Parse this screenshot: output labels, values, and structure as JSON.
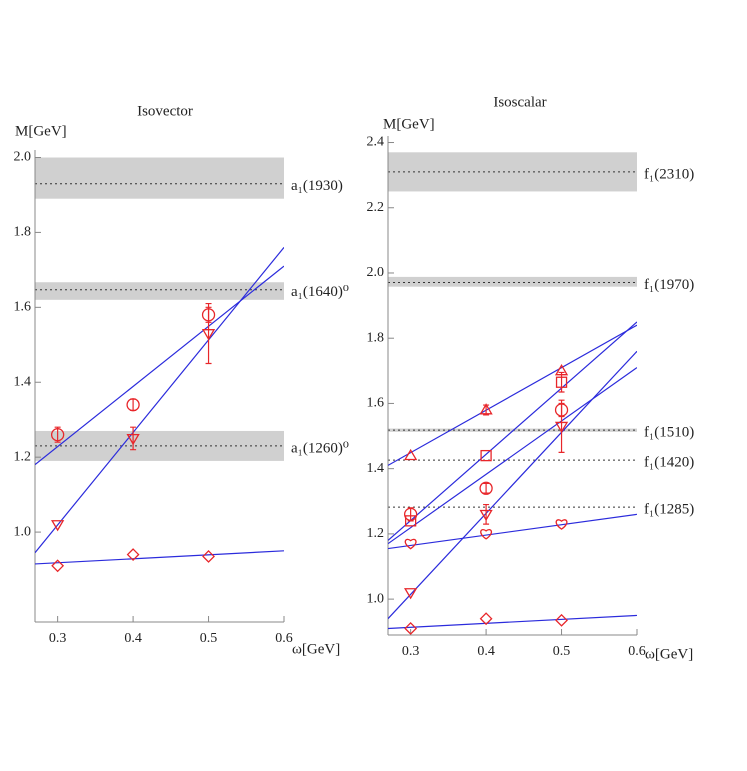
{
  "chart_data": [
    {
      "type": "scatter",
      "title": "Isovector",
      "ylabel": "M[GeV]",
      "xlabel": "ω[GeV]",
      "xlim": [
        0.27,
        0.6
      ],
      "ylim": [
        0.76,
        2.02
      ],
      "xticks": [
        0.3,
        0.4,
        0.5,
        0.6
      ],
      "yticks": [
        {
          "value": 1,
          "label": "1.0"
        },
        1.2,
        1.4,
        1.6,
        1.8,
        {
          "value": 2,
          "label": "2.0"
        }
      ],
      "x": [
        0.3,
        0.4,
        0.5
      ],
      "series": [
        {
          "marker": "circle",
          "color": "#e8262a",
          "values": [
            1.26,
            1.34,
            1.58
          ],
          "errors": [
            0.02,
            0.015,
            0.02
          ]
        },
        {
          "marker": "triangle-down",
          "color": "#e8262a",
          "values": [
            1.02,
            1.25,
            1.53
          ],
          "errors": [
            null,
            0.03,
            0.08
          ]
        },
        {
          "marker": "diamond",
          "color": "#e8262a",
          "values": [
            0.91,
            0.94,
            0.935
          ],
          "errors": [
            null,
            null,
            null
          ]
        }
      ],
      "lines": [
        {
          "color": "#2b2bdc",
          "x": [
            0.27,
            0.6
          ],
          "y": [
            1.18,
            1.71
          ]
        },
        {
          "color": "#2b2bdc",
          "x": [
            0.27,
            0.6
          ],
          "y": [
            0.945,
            1.76
          ]
        },
        {
          "color": "#2b2bdc",
          "x": [
            0.27,
            0.6
          ],
          "y": [
            0.915,
            0.95
          ]
        }
      ],
      "references": [
        {
          "label": "a₁(1930)",
          "value": 1.93,
          "band": [
            1.89,
            2.0
          ]
        },
        {
          "label": "a₁(1640)⁰",
          "value": 1.647,
          "band": [
            1.62,
            1.667
          ]
        },
        {
          "label": "a₁(1260)⁰",
          "value": 1.23,
          "band": [
            1.19,
            1.27
          ]
        }
      ]
    },
    {
      "type": "scatter",
      "title": "Isoscalar",
      "ylabel": "M[GeV]",
      "xlabel": "ω[GeV]",
      "xlim": [
        0.27,
        0.6
      ],
      "ylim": [
        0.89,
        2.42
      ],
      "xticks": [
        0.3,
        0.4,
        0.5,
        0.6
      ],
      "yticks": [
        {
          "value": 1,
          "label": "1.0"
        },
        1.2,
        1.4,
        1.6,
        1.8,
        {
          "value": 2,
          "label": "2.0"
        },
        2.2,
        2.4
      ],
      "x": [
        0.3,
        0.4,
        0.5
      ],
      "series": [
        {
          "marker": "triangle-up",
          "color": "#e8262a",
          "values": [
            1.44,
            1.58,
            1.7
          ],
          "errors": [
            null,
            0.015,
            null
          ]
        },
        {
          "marker": "square",
          "color": "#e8262a",
          "values": [
            1.24,
            1.44,
            1.665
          ],
          "errors": [
            null,
            null,
            0.03
          ]
        },
        {
          "marker": "circle",
          "color": "#e8262a",
          "values": [
            1.26,
            1.34,
            1.58
          ],
          "errors": [
            0.02,
            0.015,
            0.02
          ]
        },
        {
          "marker": "triangle-down",
          "color": "#e8262a",
          "values": [
            1.02,
            1.26,
            1.53
          ],
          "errors": [
            null,
            0.03,
            0.08
          ]
        },
        {
          "marker": "heart",
          "color": "#e8262a",
          "values": [
            1.17,
            1.2,
            1.23
          ],
          "errors": [
            null,
            null,
            null
          ]
        },
        {
          "marker": "diamond",
          "color": "#e8262a",
          "values": [
            0.91,
            0.94,
            0.935
          ],
          "errors": [
            null,
            null,
            null
          ]
        }
      ],
      "lines": [
        {
          "color": "#2b2bdc",
          "x": [
            0.27,
            0.6
          ],
          "y": [
            1.41,
            1.84
          ]
        },
        {
          "color": "#2b2bdc",
          "x": [
            0.27,
            0.6
          ],
          "y": [
            1.18,
            1.85
          ]
        },
        {
          "color": "#2b2bdc",
          "x": [
            0.27,
            0.6
          ],
          "y": [
            1.17,
            1.71
          ]
        },
        {
          "color": "#2b2bdc",
          "x": [
            0.27,
            0.6
          ],
          "y": [
            0.94,
            1.76
          ]
        },
        {
          "color": "#2b2bdc",
          "x": [
            0.27,
            0.6
          ],
          "y": [
            1.155,
            1.26
          ]
        },
        {
          "color": "#2b2bdc",
          "x": [
            0.27,
            0.6
          ],
          "y": [
            0.91,
            0.95
          ]
        }
      ],
      "references": [
        {
          "label": "f₁(2310)",
          "value": 2.31,
          "band": [
            2.25,
            2.37
          ]
        },
        {
          "label": "f₁(1970)",
          "value": 1.971,
          "band": [
            1.958,
            1.988
          ]
        },
        {
          "label": "f₁(1510)",
          "value": 1.518,
          "band": [
            1.513,
            1.523
          ]
        },
        {
          "label": "f₁(1420)",
          "value": 1.426,
          "band": null
        },
        {
          "label": "f₁(1285)",
          "value": 1.282,
          "band": null
        }
      ]
    }
  ]
}
